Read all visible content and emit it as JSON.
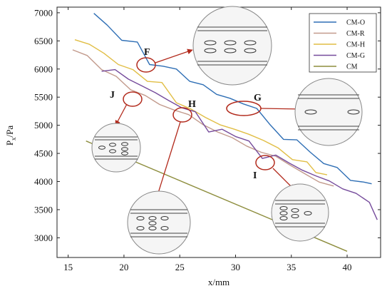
{
  "chart_data": {
    "type": "line",
    "xlabel": "x/mm",
    "ylabel": "P",
    "ylabel_subscript": "x",
    "ylabel_suffix": "/Pa",
    "xlim": [
      14,
      43
    ],
    "ylim": [
      2650,
      7100
    ],
    "xticks": [
      15,
      20,
      25,
      30,
      35,
      40
    ],
    "yticks": [
      3000,
      3500,
      4000,
      4500,
      5000,
      5500,
      6000,
      6500,
      7000
    ],
    "legend_position": "top-right",
    "grid": false,
    "series": [
      {
        "name": "CM-O",
        "color": "#2f6fb5",
        "x": [
          17.3,
          18.5,
          19.8,
          21.2,
          22.3,
          23.5,
          24.7,
          25.9,
          27.1,
          28.3,
          29.5,
          30.7,
          31.9,
          33.1,
          34.3,
          35.5,
          36.7,
          37.9,
          39.1,
          40.3,
          41.5,
          42.2
        ],
        "y": [
          6990,
          6780,
          6510,
          6480,
          6080,
          6050,
          6000,
          5780,
          5720,
          5550,
          5480,
          5380,
          5300,
          5010,
          4750,
          4740,
          4520,
          4320,
          4250,
          4020,
          3990,
          3960
        ]
      },
      {
        "name": "CM-R",
        "color": "#c29a8c",
        "x": [
          15.4,
          16.7,
          18.0,
          19.3,
          20.6,
          21.9,
          23.2,
          24.5,
          25.8,
          27.1,
          28.4,
          29.7,
          31.0,
          32.3,
          33.6,
          34.9,
          36.2,
          37.5,
          38.8
        ],
        "y": [
          6340,
          6240,
          5990,
          5870,
          5630,
          5530,
          5370,
          5270,
          5190,
          5010,
          4880,
          4780,
          4630,
          4520,
          4450,
          4290,
          4140,
          3990,
          3920
        ]
      },
      {
        "name": "CM-H",
        "color": "#e1be45",
        "x": [
          15.6,
          16.9,
          18.2,
          19.5,
          20.8,
          22.1,
          23.4,
          24.7,
          26.0,
          27.3,
          28.6,
          29.9,
          31.2,
          32.5,
          33.8,
          35.1,
          36.4,
          37.2,
          38.2
        ],
        "y": [
          6520,
          6440,
          6280,
          6080,
          5990,
          5780,
          5760,
          5400,
          5290,
          5140,
          5010,
          4930,
          4840,
          4730,
          4600,
          4390,
          4350,
          4160,
          4120
        ]
      },
      {
        "name": "CM-G",
        "color": "#764c9c",
        "x": [
          18.0,
          19.2,
          20.4,
          21.6,
          22.8,
          24.0,
          25.2,
          26.4,
          27.6,
          28.8,
          30.0,
          31.2,
          32.4,
          33.6,
          34.8,
          36.0,
          37.2,
          38.4,
          39.6,
          40.8,
          42.0,
          42.7
        ],
        "y": [
          5960,
          5990,
          5820,
          5700,
          5580,
          5440,
          5310,
          5240,
          4880,
          4930,
          4800,
          4720,
          4410,
          4470,
          4330,
          4200,
          4100,
          4010,
          3870,
          3790,
          3630,
          3320
        ]
      },
      {
        "name": "CM",
        "color": "#8d8d3d",
        "x": [
          16.6,
          40.0
        ],
        "y": [
          4720,
          2760
        ]
      }
    ],
    "annotations": [
      {
        "label": "F",
        "x": 22.3,
        "y": 6120
      },
      {
        "label": "G",
        "x": 30.8,
        "y": 5330
      },
      {
        "label": "H",
        "x": 25.6,
        "y": 5250
      },
      {
        "label": "I",
        "x": 32.8,
        "y": 4390
      },
      {
        "label": "J",
        "x": 21.0,
        "y": 5560
      }
    ]
  }
}
